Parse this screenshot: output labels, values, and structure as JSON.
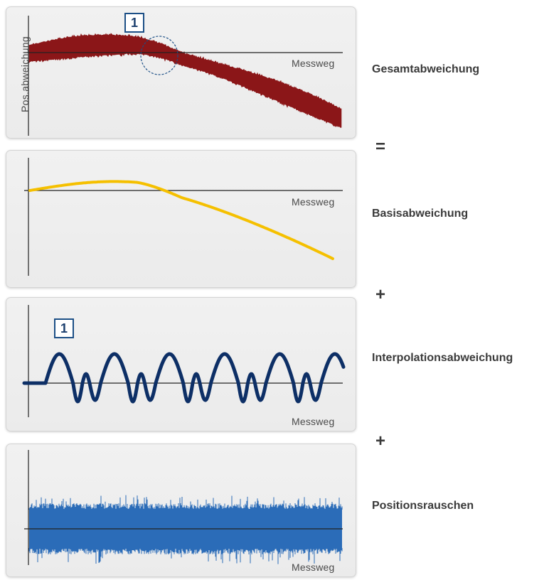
{
  "panels": [
    {
      "xlabel": "Messweg",
      "ylabel": "Pos.abweichung",
      "marker": "1",
      "curve": "total-deviation",
      "color": "#8b1618"
    },
    {
      "xlabel": "Messweg",
      "curve": "base-deviation",
      "color": "#f5c000"
    },
    {
      "xlabel": "Messweg",
      "marker": "1",
      "curve": "interpolation-deviation",
      "color": "#0d2f66"
    },
    {
      "xlabel": "Messweg",
      "curve": "position-noise",
      "color": "#2b6cb8"
    }
  ],
  "terms": {
    "total": "Gesamtabweichung",
    "base": "Basisabweichung",
    "interpolation": "Interpolationsabweichung",
    "noise": "Positionsrauschen"
  },
  "operators": {
    "equals": "=",
    "plus1": "+",
    "plus2": "+"
  }
}
